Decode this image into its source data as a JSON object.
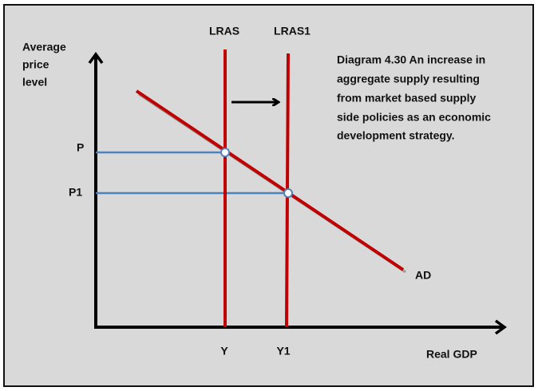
{
  "title": {
    "lines": [
      "Diagram 4.30 An increase in",
      "aggregate supply resulting",
      "from market based supply",
      "side policies as an economic",
      "development strategy."
    ]
  },
  "axes": {
    "y_label": [
      "Average",
      "price",
      "level"
    ],
    "x_label": "Real GDP"
  },
  "curves": {
    "lras": "LRAS",
    "lras1": "LRAS1",
    "ad": "AD"
  },
  "levels": {
    "p": "P",
    "p1": "P1",
    "y": "Y",
    "y1": "Y1"
  }
}
